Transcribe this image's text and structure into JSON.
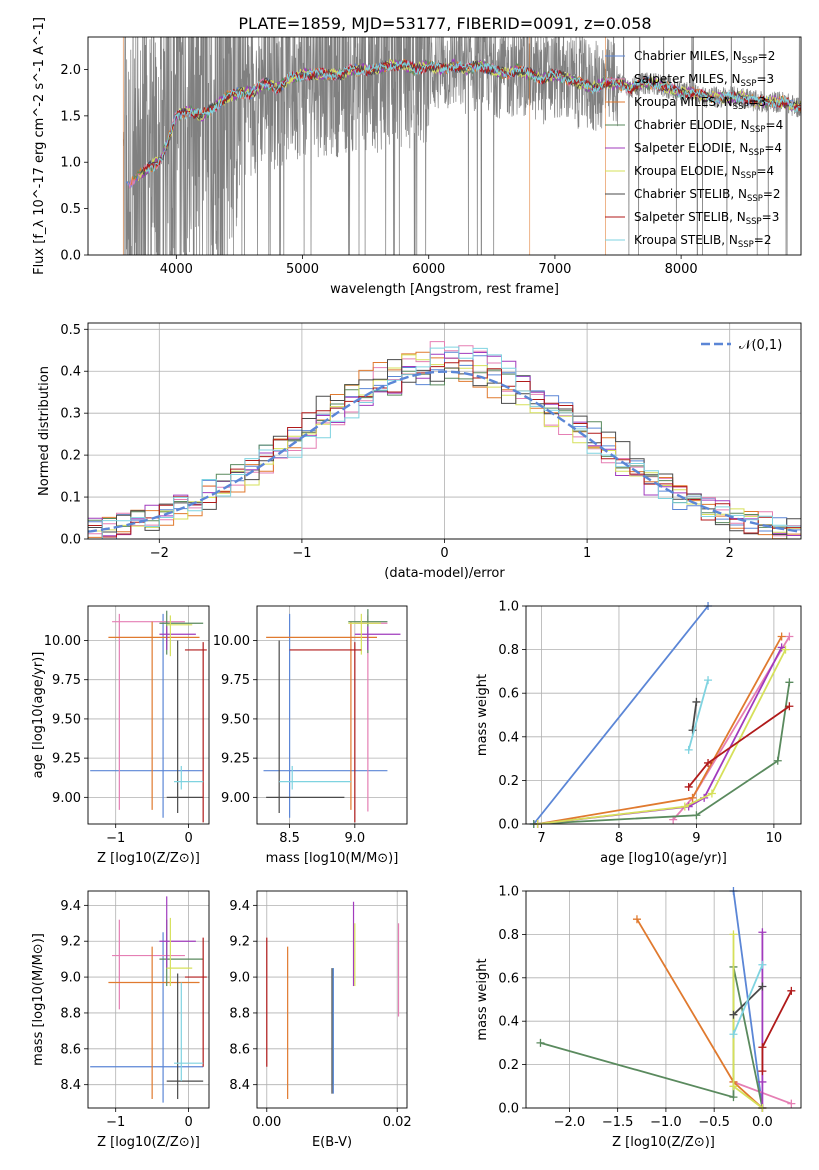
{
  "figure": {
    "title": "PLATE=1859, MJD=53177, FIBERID=0091, z=0.058"
  },
  "series_styles": [
    {
      "name": "Chabrier MILES, N_SSP=2",
      "color": "#5b86d6"
    },
    {
      "name": "Salpeter MILES, N_SSP=3",
      "color": "#e57fb4"
    },
    {
      "name": "Kroupa MILES, N_SSP=3",
      "color": "#e07a2f"
    },
    {
      "name": "Chabrier ELODIE, N_SSP=4",
      "color": "#5a8a5e"
    },
    {
      "name": "Salpeter ELODIE, N_SSP=4",
      "color": "#a13bbd"
    },
    {
      "name": "Kroupa ELODIE, N_SSP=4",
      "color": "#d6e05a"
    },
    {
      "name": "Chabrier STELIB, N_SSP=2",
      "color": "#4a4a4a"
    },
    {
      "name": "Salpeter STELIB, N_SSP=3",
      "color": "#b01a1a"
    },
    {
      "name": "Kroupa STELIB, N_SSP=2",
      "color": "#7fd3e0"
    }
  ],
  "chart_data": [
    {
      "id": "spectrum",
      "type": "line",
      "title": "PLATE=1859, MJD=53177, FIBERID=0091, z=0.058",
      "xlabel": "wavelength [Angstrom, rest frame]",
      "ylabel": "Flux [f_λ 10^-17 erg cm^-2 s^-1 A^-1]",
      "xlim": [
        3300,
        8950
      ],
      "ylim": [
        0,
        2.35
      ],
      "xticks": [
        4000,
        5000,
        6000,
        7000,
        8000
      ],
      "yticks": [
        0.0,
        0.5,
        1.0,
        1.5,
        2.0
      ],
      "grid": false,
      "legend": "top-right",
      "data_color": "#808080",
      "continuum": {
        "x": [
          3580,
          3650,
          3700,
          3800,
          3850,
          3900,
          3950,
          4000,
          4100,
          4200,
          4300,
          4400,
          4500,
          4600,
          4700,
          4800,
          4900,
          5000,
          5100,
          5200,
          5300,
          5400,
          5500,
          5600,
          5700,
          5800,
          5900,
          6000,
          6100,
          6200,
          6300,
          6400,
          6500,
          6600,
          6700,
          6800,
          6900,
          7000,
          7100,
          7200,
          7300,
          7400,
          7500,
          7600,
          7700,
          7800,
          7900,
          8000,
          8100,
          8200,
          8300,
          8400,
          8500,
          8600,
          8700,
          8800,
          8900
        ],
        "y": [
          0.75,
          0.8,
          0.85,
          0.95,
          1.0,
          1.1,
          1.3,
          1.5,
          1.55,
          1.5,
          1.6,
          1.7,
          1.75,
          1.75,
          1.85,
          1.8,
          1.9,
          1.95,
          1.95,
          1.95,
          1.95,
          2.0,
          2.0,
          2.0,
          2.05,
          2.05,
          2.0,
          2.05,
          2.0,
          2.05,
          2.0,
          2.05,
          2.0,
          1.95,
          2.0,
          1.95,
          1.9,
          1.95,
          1.9,
          1.85,
          1.8,
          1.85,
          1.85,
          1.8,
          1.85,
          1.85,
          1.8,
          1.75,
          1.75,
          1.7,
          1.7,
          1.7,
          1.7,
          1.65,
          1.65,
          1.65,
          1.6
        ]
      }
    },
    {
      "id": "residuals",
      "type": "line",
      "xlabel": "(data-model)/error",
      "ylabel": "Normed distribution",
      "xlim": [
        -2.5,
        2.5
      ],
      "ylim": [
        0,
        0.515
      ],
      "xticks": [
        -2,
        -1,
        0,
        1,
        2
      ],
      "yticks": [
        0.0,
        0.1,
        0.2,
        0.3,
        0.4,
        0.5
      ],
      "grid": true,
      "legend": "top-right",
      "reference": {
        "name": "𝒩(0,1)",
        "mean": 0,
        "sigma": 1,
        "color": "#5b86d6"
      }
    },
    {
      "id": "age-vs-Z",
      "type": "scatter",
      "xlabel": "Z [log10(Z/Z⊙)]",
      "ylabel": "age  [log10(age/yr)]",
      "xlim": [
        -1.38,
        0.28
      ],
      "ylim": [
        8.83,
        10.22
      ],
      "xticks": [
        -1,
        0
      ],
      "yticks": [
        9.0,
        9.25,
        9.5,
        9.75,
        10.0
      ],
      "grid": true,
      "points": [
        {
          "x": -0.35,
          "xerr": [
            1.0,
            0.55
          ],
          "y": 9.17,
          "yerr": [
            0.3,
            1.0
          ],
          "s": 0
        },
        {
          "x": -0.95,
          "xerr": [
            0.1,
            0.9
          ],
          "y": 10.12,
          "yerr": [
            1.2,
            0.05
          ],
          "s": 1
        },
        {
          "x": -0.5,
          "xerr": [
            0.6,
            0.65
          ],
          "y": 10.02,
          "yerr": [
            1.1,
            0.1
          ],
          "s": 2
        },
        {
          "x": -0.3,
          "xerr": [
            0.1,
            0.5
          ],
          "y": 10.11,
          "yerr": [
            0.2,
            0.08
          ],
          "s": 3
        },
        {
          "x": -0.3,
          "xerr": [
            0.1,
            0.4
          ],
          "y": 10.04,
          "yerr": [
            0.1,
            0.05
          ],
          "s": 4
        },
        {
          "x": -0.25,
          "xerr": [
            0.05,
            0.3
          ],
          "y": 10.1,
          "yerr": [
            0.2,
            0.06
          ],
          "s": 5
        },
        {
          "x": -0.15,
          "xerr": [
            0.15,
            0.35
          ],
          "y": 9.0,
          "yerr": [
            0.1,
            1.0
          ],
          "s": 6
        },
        {
          "x": 0.2,
          "xerr": [
            0.25,
            0.05
          ],
          "y": 9.94,
          "yerr": [
            1.1,
            0.05
          ],
          "s": 7
        },
        {
          "x": -0.1,
          "xerr": [
            0.1,
            0.3
          ],
          "y": 9.1,
          "yerr": [
            0.05,
            0.1
          ],
          "s": 8
        }
      ]
    },
    {
      "id": "age-vs-mass",
      "type": "scatter",
      "xlabel": "mass [log10(M/M⊙)]",
      "ylabel": "",
      "xlim": [
        8.25,
        9.4
      ],
      "ylim": [
        8.83,
        10.22
      ],
      "xticks": [
        8.5,
        9.0
      ],
      "yticks": [
        9.0,
        9.25,
        9.5,
        9.75,
        10.0
      ],
      "grid": true,
      "points": [
        {
          "x": 8.5,
          "xerr": [
            0.2,
            0.75
          ],
          "y": 9.17,
          "yerr": [
            0.3,
            1.0
          ],
          "s": 0
        },
        {
          "x": 9.1,
          "xerr": [
            0.1,
            0.15
          ],
          "y": 10.11,
          "yerr": [
            1.2,
            0.05
          ],
          "s": 1
        },
        {
          "x": 8.97,
          "xerr": [
            0.65,
            0.2
          ],
          "y": 10.02,
          "yerr": [
            1.1,
            0.1
          ],
          "s": 2
        },
        {
          "x": 9.1,
          "xerr": [
            0.15,
            0.15
          ],
          "y": 10.12,
          "yerr": [
            0.2,
            0.08
          ],
          "s": 3
        },
        {
          "x": 9.1,
          "xerr": [
            0.1,
            0.25
          ],
          "y": 10.04,
          "yerr": [
            0.1,
            0.05
          ],
          "s": 4
        },
        {
          "x": 9.05,
          "xerr": [
            0.1,
            0.15
          ],
          "y": 10.11,
          "yerr": [
            0.2,
            0.06
          ],
          "s": 5
        },
        {
          "x": 8.42,
          "xerr": [
            0.1,
            0.5
          ],
          "y": 9.0,
          "yerr": [
            0.1,
            1.0
          ],
          "s": 6
        },
        {
          "x": 9.0,
          "xerr": [
            0.5,
            0.05
          ],
          "y": 9.94,
          "yerr": [
            1.1,
            0.05
          ],
          "s": 7
        },
        {
          "x": 8.52,
          "xerr": [
            0.1,
            0.45
          ],
          "y": 9.1,
          "yerr": [
            0.05,
            0.1
          ],
          "s": 8
        }
      ]
    },
    {
      "id": "mass-weight-vs-age",
      "type": "line",
      "xlabel": "age  [log10(age/yr)]",
      "ylabel": "mass weight",
      "xlim": [
        6.8,
        10.35
      ],
      "ylim": [
        0,
        1.0
      ],
      "xticks": [
        7,
        8,
        9,
        10
      ],
      "yticks": [
        0.0,
        0.2,
        0.4,
        0.6,
        0.8,
        1.0
      ],
      "grid": true,
      "series": [
        {
          "s": 0,
          "x": [
            6.9,
            9.15
          ],
          "y": [
            0.0,
            1.0
          ]
        },
        {
          "s": 1,
          "x": [
            8.7,
            8.95,
            10.2
          ],
          "y": [
            0.02,
            0.12,
            0.86
          ]
        },
        {
          "s": 2,
          "x": [
            6.95,
            8.95,
            10.1
          ],
          "y": [
            0.0,
            0.12,
            0.86
          ]
        },
        {
          "s": 3,
          "x": [
            6.9,
            9.0,
            10.05,
            10.2
          ],
          "y": [
            0.0,
            0.04,
            0.29,
            0.65
          ]
        },
        {
          "s": 4,
          "x": [
            6.95,
            8.9,
            9.1,
            10.1
          ],
          "y": [
            0.0,
            0.08,
            0.12,
            0.81
          ]
        },
        {
          "s": 5,
          "x": [
            6.95,
            8.85,
            9.2,
            10.15
          ],
          "y": [
            0.0,
            0.08,
            0.14,
            0.8
          ]
        },
        {
          "s": 6,
          "x": [
            8.95,
            9.0
          ],
          "y": [
            0.43,
            0.56
          ]
        },
        {
          "s": 7,
          "x": [
            8.9,
            9.15,
            10.2
          ],
          "y": [
            0.17,
            0.28,
            0.54
          ]
        },
        {
          "s": 8,
          "x": [
            8.9,
            9.15
          ],
          "y": [
            0.34,
            0.66
          ]
        }
      ]
    },
    {
      "id": "mass-vs-Z",
      "type": "scatter",
      "xlabel": "Z [log10(Z/Z⊙)]",
      "ylabel": "mass [log10(M/M⊙)]",
      "xlim": [
        -1.38,
        0.28
      ],
      "ylim": [
        8.27,
        9.48
      ],
      "xticks": [
        -1,
        0
      ],
      "yticks": [
        8.4,
        8.6,
        8.8,
        9.0,
        9.2,
        9.4
      ],
      "grid": true,
      "points": [
        {
          "x": -0.35,
          "xerr": [
            1.0,
            0.55
          ],
          "y": 8.5,
          "yerr": [
            0.2,
            0.75
          ],
          "s": 0
        },
        {
          "x": -0.95,
          "xerr": [
            0.1,
            0.9
          ],
          "y": 9.12,
          "yerr": [
            0.3,
            0.2
          ],
          "s": 1
        },
        {
          "x": -0.5,
          "xerr": [
            0.6,
            0.65
          ],
          "y": 8.97,
          "yerr": [
            0.65,
            0.2
          ],
          "s": 2
        },
        {
          "x": -0.3,
          "xerr": [
            0.1,
            0.5
          ],
          "y": 9.1,
          "yerr": [
            0.15,
            0.22
          ],
          "s": 3
        },
        {
          "x": -0.3,
          "xerr": [
            0.1,
            0.4
          ],
          "y": 9.2,
          "yerr": [
            0.15,
            0.25
          ],
          "s": 4
        },
        {
          "x": -0.25,
          "xerr": [
            0.05,
            0.3
          ],
          "y": 9.05,
          "yerr": [
            0.1,
            0.28
          ],
          "s": 5
        },
        {
          "x": -0.15,
          "xerr": [
            0.15,
            0.35
          ],
          "y": 8.42,
          "yerr": [
            0.1,
            0.6
          ],
          "s": 6
        },
        {
          "x": 0.2,
          "xerr": [
            0.25,
            0.05
          ],
          "y": 9.0,
          "yerr": [
            0.5,
            0.22
          ],
          "s": 7
        },
        {
          "x": -0.1,
          "xerr": [
            0.1,
            0.3
          ],
          "y": 8.52,
          "yerr": [
            0.1,
            0.45
          ],
          "s": 8
        }
      ]
    },
    {
      "id": "mass-vs-EBV",
      "type": "scatter",
      "xlabel": "E(B-V)",
      "ylabel": "",
      "xlim": [
        -0.0015,
        0.0215
      ],
      "ylim": [
        8.27,
        9.48
      ],
      "xticks": [
        0.0,
        0.02
      ],
      "yticks": [
        8.4,
        8.6,
        8.8,
        9.0,
        9.2,
        9.4
      ],
      "grid": true,
      "points": [
        {
          "x": 0.0,
          "y": 9.0,
          "yerr": [
            0.5,
            0.22
          ],
          "s": 7
        },
        {
          "x": 0.0032,
          "y": 8.97,
          "yerr": [
            0.65,
            0.2
          ],
          "s": 2
        },
        {
          "x": 0.01,
          "y": 8.5,
          "yerr": [
            0.15,
            0.55
          ],
          "s": 6
        },
        {
          "x": 0.0102,
          "y": 8.5,
          "yerr": [
            0.1,
            0.55
          ],
          "s": 8
        },
        {
          "x": 0.0133,
          "y": 9.1,
          "yerr": [
            0.15,
            0.32
          ],
          "s": 4
        },
        {
          "x": 0.0135,
          "y": 9.1,
          "yerr": [
            0.15,
            0.2
          ],
          "s": 5
        },
        {
          "x": 0.0102,
          "y": 8.9,
          "yerr": [
            0.55,
            0.15
          ],
          "s": 0
        },
        {
          "x": 0.0202,
          "y": 9.0,
          "yerr": [
            0.22,
            0.3
          ],
          "s": 1
        }
      ]
    },
    {
      "id": "mass-weight-vs-Z",
      "type": "line",
      "xlabel": "Z [log10(Z/Z⊙)]",
      "ylabel": "mass weight",
      "xlim": [
        -2.45,
        0.4
      ],
      "ylim": [
        0,
        1.0
      ],
      "xticks": [
        -2.0,
        -1.5,
        -1.0,
        -0.5,
        0.0
      ],
      "yticks": [
        0.0,
        0.2,
        0.4,
        0.6,
        0.8,
        1.0
      ],
      "grid": true,
      "series": [
        {
          "s": 0,
          "x": [
            -0.3,
            0.0
          ],
          "y": [
            1.0,
            0.0
          ]
        },
        {
          "s": 1,
          "x": [
            -0.3,
            0.3
          ],
          "y": [
            0.12,
            0.02
          ]
        },
        {
          "s": 2,
          "x": [
            -1.3,
            -0.3,
            0.0
          ],
          "y": [
            0.87,
            0.12,
            0.0
          ]
        },
        {
          "s": 3,
          "x": [
            -2.3,
            -0.3,
            -0.3,
            0.0
          ],
          "y": [
            0.3,
            0.05,
            0.65,
            0.0
          ]
        },
        {
          "s": 4,
          "x": [
            0.0,
            0.0,
            0.0
          ],
          "y": [
            0.81,
            0.12,
            0.0
          ]
        },
        {
          "s": 5,
          "x": [
            -0.3,
            -0.3,
            0.0
          ],
          "y": [
            0.8,
            0.1,
            0.0
          ]
        },
        {
          "s": 6,
          "x": [
            -0.3,
            0.0
          ],
          "y": [
            0.43,
            0.56
          ]
        },
        {
          "s": 7,
          "x": [
            0.0,
            0.0,
            0.3
          ],
          "y": [
            0.17,
            0.28,
            0.54
          ]
        },
        {
          "s": 8,
          "x": [
            -0.3,
            0.0
          ],
          "y": [
            0.34,
            0.66
          ]
        }
      ]
    }
  ]
}
